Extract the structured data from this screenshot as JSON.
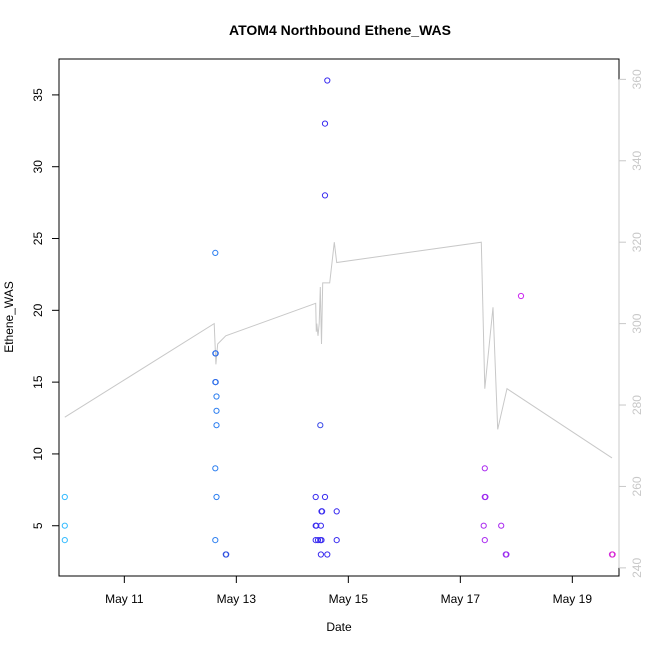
{
  "chart_data": {
    "type": "scatter",
    "title": "ATOM4 Northbound Ethene_WAS",
    "xlabel": "Date",
    "ylabel": "Ethene_WAS",
    "x_axis": {
      "kind": "date",
      "range": [
        "2016-05-09T20:00",
        "2016-05-19T20:00"
      ],
      "ticks": [
        {
          "value": "2016-05-11",
          "label": "May 11"
        },
        {
          "value": "2016-05-13",
          "label": "May 13"
        },
        {
          "value": "2016-05-15",
          "label": "May 15"
        },
        {
          "value": "2016-05-17",
          "label": "May 17"
        },
        {
          "value": "2016-05-19",
          "label": "May 19"
        }
      ]
    },
    "y_axis_left": {
      "range": [
        1.5,
        37.5
      ],
      "ticks": [
        5,
        10,
        15,
        20,
        25,
        30,
        35
      ]
    },
    "y_axis_right": {
      "range": [
        238,
        365
      ],
      "ticks": [
        240,
        260,
        280,
        300,
        320,
        340,
        360
      ],
      "color": "#c8c8c8"
    },
    "grid": false,
    "legend": "none",
    "colors": {
      "line": "#c8c8c8",
      "axis": "#000000"
    },
    "points": [
      {
        "x": "2016-05-09T22:30",
        "y": 7,
        "color": "#33bbff"
      },
      {
        "x": "2016-05-09T22:30",
        "y": 5,
        "color": "#33bbff"
      },
      {
        "x": "2016-05-09T22:30",
        "y": 4,
        "color": "#33bbff"
      },
      {
        "x": "2016-05-12T15:00",
        "y": 24,
        "color": "#2d7ff0"
      },
      {
        "x": "2016-05-12T15:00",
        "y": 17,
        "color": "#2d7ff0"
      },
      {
        "x": "2016-05-12T15:10",
        "y": 17,
        "color": "#2f6ae8"
      },
      {
        "x": "2016-05-12T15:00",
        "y": 15,
        "color": "#2d7ff0"
      },
      {
        "x": "2016-05-12T15:10",
        "y": 15,
        "color": "#2f6ae8"
      },
      {
        "x": "2016-05-12T15:30",
        "y": 14,
        "color": "#2d7ff0"
      },
      {
        "x": "2016-05-12T15:30",
        "y": 13,
        "color": "#2d7ff0"
      },
      {
        "x": "2016-05-12T15:30",
        "y": 12,
        "color": "#2d7ff0"
      },
      {
        "x": "2016-05-12T15:00",
        "y": 9,
        "color": "#2d7ff0"
      },
      {
        "x": "2016-05-12T15:30",
        "y": 7,
        "color": "#2d7ff0"
      },
      {
        "x": "2016-05-12T15:00",
        "y": 4,
        "color": "#2d7ff0"
      },
      {
        "x": "2016-05-12T19:30",
        "y": 3,
        "color": "#2f50e0"
      },
      {
        "x": "2016-05-12T19:40",
        "y": 3,
        "color": "#2f50e0"
      },
      {
        "x": "2016-05-14T15:00",
        "y": 36,
        "color": "#3a2cf0"
      },
      {
        "x": "2016-05-14T14:00",
        "y": 33,
        "color": "#3a2cf0"
      },
      {
        "x": "2016-05-14T14:00",
        "y": 28,
        "color": "#3a2cf0"
      },
      {
        "x": "2016-05-14T12:00",
        "y": 12,
        "color": "#3a4ae8"
      },
      {
        "x": "2016-05-14T10:00",
        "y": 7,
        "color": "#3a2cf0"
      },
      {
        "x": "2016-05-14T14:00",
        "y": 7,
        "color": "#3a2cf0"
      },
      {
        "x": "2016-05-14T12:30",
        "y": 6,
        "color": "#3a2cf0"
      },
      {
        "x": "2016-05-14T12:45",
        "y": 6,
        "color": "#3a2cf0"
      },
      {
        "x": "2016-05-14T19:00",
        "y": 6,
        "color": "#3a2cf0"
      },
      {
        "x": "2016-05-14T10:00",
        "y": 5,
        "color": "#3a2cf0"
      },
      {
        "x": "2016-05-14T10:15",
        "y": 5,
        "color": "#3a2cf0"
      },
      {
        "x": "2016-05-14T12:15",
        "y": 5,
        "color": "#3a2cf0"
      },
      {
        "x": "2016-05-14T10:00",
        "y": 4,
        "color": "#3a2cf0"
      },
      {
        "x": "2016-05-14T11:00",
        "y": 4,
        "color": "#3a2cf0"
      },
      {
        "x": "2016-05-14T12:00",
        "y": 4,
        "color": "#3a2cf0"
      },
      {
        "x": "2016-05-14T12:30",
        "y": 4,
        "color": "#3a2cf0"
      },
      {
        "x": "2016-05-14T19:00",
        "y": 4,
        "color": "#3a2cf0"
      },
      {
        "x": "2016-05-14T12:15",
        "y": 3,
        "color": "#3a2cf0"
      },
      {
        "x": "2016-05-14T15:00",
        "y": 3,
        "color": "#3a2cf0"
      },
      {
        "x": "2016-05-17T10:30",
        "y": 9,
        "color": "#aa2af0"
      },
      {
        "x": "2016-05-17T10:30",
        "y": 7,
        "color": "#aa2af0"
      },
      {
        "x": "2016-05-17T10:45",
        "y": 7,
        "color": "#9a2af0"
      },
      {
        "x": "2016-05-17T10:00",
        "y": 5,
        "color": "#aa2af0"
      },
      {
        "x": "2016-05-17T17:30",
        "y": 5,
        "color": "#aa2af0"
      },
      {
        "x": "2016-05-17T10:30",
        "y": 4,
        "color": "#aa2af0"
      },
      {
        "x": "2016-05-17T19:30",
        "y": 3,
        "color": "#9a2af0"
      },
      {
        "x": "2016-05-17T19:45",
        "y": 3,
        "color": "#9a2af0"
      },
      {
        "x": "2016-05-18T02:00",
        "y": 21,
        "color": "#cc2af0"
      },
      {
        "x": "2016-05-19T17:00",
        "y": 3,
        "color": "#cc2ae0"
      },
      {
        "x": "2016-05-19T17:15",
        "y": 3,
        "color": "#dd2ad0"
      }
    ],
    "line_series": {
      "axis": "right",
      "color": "#c8c8c8",
      "points": [
        {
          "x": "2016-05-09T22:30",
          "y": 277
        },
        {
          "x": "2016-05-12T14:30",
          "y": 300
        },
        {
          "x": "2016-05-12T15:15",
          "y": 290
        },
        {
          "x": "2016-05-12T16:00",
          "y": 295
        },
        {
          "x": "2016-05-12T19:30",
          "y": 297
        },
        {
          "x": "2016-05-14T10:00",
          "y": 305
        },
        {
          "x": "2016-05-14T10:15",
          "y": 298
        },
        {
          "x": "2016-05-14T10:30",
          "y": 300
        },
        {
          "x": "2016-05-14T11:00",
          "y": 297
        },
        {
          "x": "2016-05-14T11:30",
          "y": 300
        },
        {
          "x": "2016-05-14T12:00",
          "y": 309
        },
        {
          "x": "2016-05-14T12:30",
          "y": 295
        },
        {
          "x": "2016-05-14T13:00",
          "y": 310
        },
        {
          "x": "2016-05-14T16:00",
          "y": 310
        },
        {
          "x": "2016-05-14T18:00",
          "y": 320
        },
        {
          "x": "2016-05-14T19:00",
          "y": 315
        },
        {
          "x": "2016-05-17T09:00",
          "y": 320
        },
        {
          "x": "2016-05-17T10:30",
          "y": 284
        },
        {
          "x": "2016-05-17T14:00",
          "y": 304
        },
        {
          "x": "2016-05-17T16:00",
          "y": 274
        },
        {
          "x": "2016-05-17T20:00",
          "y": 284
        },
        {
          "x": "2016-05-19T17:00",
          "y": 267
        }
      ]
    }
  }
}
